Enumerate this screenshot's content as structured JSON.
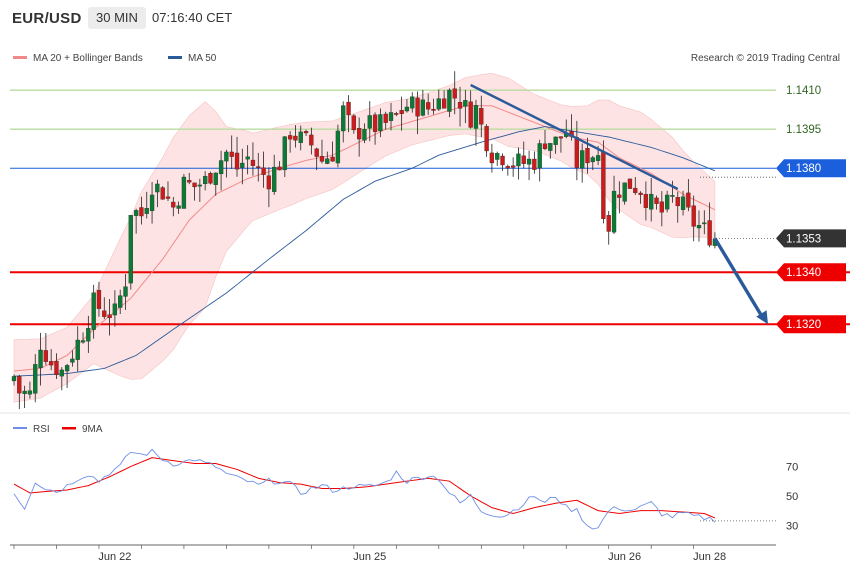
{
  "header": {
    "symbol": "EUR/USD",
    "timeframe": "30 MIN",
    "time": "07:16:40 CET"
  },
  "colors": {
    "bull_candle": "#0b7a34",
    "bear_candle": "#cc1b1b",
    "bb_fill": "#fde3e3",
    "bb_line": "#f28a8a",
    "ma20": "#f28a8a",
    "ma50": "#2b5a9a",
    "resistance": "#b9dca0",
    "support": "#ee0000",
    "pivot": "#1c5fdc",
    "last": "#333333",
    "rsi": "#6f8fe6",
    "rsi_ma": "#ee0000",
    "arrow": "#2b5a9a"
  },
  "icons": {
    "projection": "down-arrow-icon"
  },
  "chart_data": {
    "type": "candlestick",
    "legend": [
      {
        "name": "MA 20 + Bollinger Bands",
        "color": "#f28a8a"
      },
      {
        "name": "MA 50",
        "color": "#2b5a9a"
      }
    ],
    "credit": "Research © 2019 Trading Central",
    "price_range": [
      1.1287,
      1.1417
    ],
    "x_labels": [
      {
        "label": "Jun 22",
        "index": 19
      },
      {
        "label": "Jun 25",
        "index": 67
      },
      {
        "label": "Jun 26",
        "index": 115
      },
      {
        "label": "Jun 28",
        "index": 131
      }
    ],
    "candle_count": 133,
    "close_anchors": [
      [
        0,
        1.13
      ],
      [
        1,
        1.1294
      ],
      [
        3,
        1.1293
      ],
      [
        5,
        1.1313
      ],
      [
        7,
        1.1305
      ],
      [
        9,
        1.1302
      ],
      [
        11,
        1.1309
      ],
      [
        13,
        1.1317
      ],
      [
        15,
        1.1328
      ],
      [
        17,
        1.1325
      ],
      [
        19,
        1.1324
      ],
      [
        21,
        1.1337
      ],
      [
        22,
        1.1364
      ],
      [
        24,
        1.1362
      ],
      [
        26,
        1.1374
      ],
      [
        28,
        1.1371
      ],
      [
        30,
        1.1365
      ],
      [
        32,
        1.1374
      ],
      [
        34,
        1.1373
      ],
      [
        36,
        1.1375
      ],
      [
        38,
        1.1381
      ],
      [
        40,
        1.1386
      ],
      [
        42,
        1.138
      ],
      [
        44,
        1.1384
      ],
      [
        46,
        1.1379
      ],
      [
        48,
        1.1376
      ],
      [
        50,
        1.1382
      ],
      [
        52,
        1.1394
      ],
      [
        54,
        1.1391
      ],
      [
        56,
        1.1389
      ],
      [
        58,
        1.1383
      ],
      [
        60,
        1.1386
      ],
      [
        62,
        1.1402
      ],
      [
        64,
        1.1392
      ],
      [
        66,
        1.1397
      ],
      [
        68,
        1.1396
      ],
      [
        70,
        1.1397
      ],
      [
        72,
        1.14
      ],
      [
        74,
        1.1404
      ],
      [
        76,
        1.1404
      ],
      [
        78,
        1.1403
      ],
      [
        80,
        1.1406
      ],
      [
        82,
        1.1409
      ],
      [
        84,
        1.1406
      ],
      [
        86,
        1.14
      ],
      [
        87,
        1.1403
      ],
      [
        88,
        1.1396
      ],
      [
        90,
        1.1386
      ],
      [
        92,
        1.1385
      ],
      [
        94,
        1.1382
      ],
      [
        96,
        1.1382
      ],
      [
        98,
        1.1383
      ],
      [
        100,
        1.1391
      ],
      [
        102,
        1.139
      ],
      [
        104,
        1.1394
      ],
      [
        106,
        1.1382
      ],
      [
        108,
        1.1385
      ],
      [
        110,
        1.1386
      ],
      [
        111,
        1.1365
      ],
      [
        112,
        1.1358
      ],
      [
        113,
        1.137
      ],
      [
        114,
        1.1372
      ],
      [
        116,
        1.1374
      ],
      [
        118,
        1.1372
      ],
      [
        120,
        1.1366
      ],
      [
        122,
        1.1363
      ],
      [
        124,
        1.1368
      ],
      [
        126,
        1.1365
      ],
      [
        128,
        1.1359
      ],
      [
        130,
        1.1356
      ],
      [
        132,
        1.1353
      ]
    ],
    "ma50_curve": [
      [
        0,
        1.13
      ],
      [
        10,
        1.1301
      ],
      [
        17,
        1.1303
      ],
      [
        23,
        1.1308
      ],
      [
        30,
        1.1318
      ],
      [
        40,
        1.1332
      ],
      [
        48,
        1.1345
      ],
      [
        55,
        1.1356
      ],
      [
        62,
        1.1368
      ],
      [
        68,
        1.1375
      ],
      [
        75,
        1.138
      ],
      [
        80,
        1.1385
      ],
      [
        88,
        1.139
      ],
      [
        95,
        1.1394
      ],
      [
        100,
        1.1396
      ],
      [
        106,
        1.1394
      ],
      [
        112,
        1.1392
      ],
      [
        120,
        1.1388
      ],
      [
        126,
        1.1384
      ],
      [
        132,
        1.1379
      ]
    ],
    "ma20_curve": [
      [
        0,
        1.1302
      ],
      [
        5,
        1.1303
      ],
      [
        10,
        1.1308
      ],
      [
        15,
        1.1318
      ],
      [
        22,
        1.133
      ],
      [
        28,
        1.1345
      ],
      [
        33,
        1.136
      ],
      [
        38,
        1.137
      ],
      [
        44,
        1.1376
      ],
      [
        50,
        1.138
      ],
      [
        55,
        1.1383
      ],
      [
        60,
        1.1385
      ],
      [
        65,
        1.139
      ],
      [
        70,
        1.1395
      ],
      [
        75,
        1.1398
      ],
      [
        80,
        1.1401
      ],
      [
        85,
        1.1404
      ],
      [
        90,
        1.1404
      ],
      [
        95,
        1.14
      ],
      [
        100,
        1.1396
      ],
      [
        105,
        1.1392
      ],
      [
        110,
        1.139
      ],
      [
        114,
        1.1384
      ],
      [
        120,
        1.1378
      ],
      [
        126,
        1.137
      ],
      [
        132,
        1.1364
      ]
    ],
    "bb_width_curve": [
      [
        0,
        1.0
      ],
      [
        10,
        0.9
      ],
      [
        15,
        1.1
      ],
      [
        20,
        2.2
      ],
      [
        24,
        3.0
      ],
      [
        30,
        3.4
      ],
      [
        36,
        3.3
      ],
      [
        40,
        2.0
      ],
      [
        45,
        1.4
      ],
      [
        52,
        1.3
      ],
      [
        60,
        1.1
      ],
      [
        68,
        0.9
      ],
      [
        75,
        0.75
      ],
      [
        82,
        0.8
      ],
      [
        88,
        1.0
      ],
      [
        93,
        1.1
      ],
      [
        98,
        0.9
      ],
      [
        103,
        0.9
      ],
      [
        108,
        1.1
      ],
      [
        112,
        1.6
      ],
      [
        118,
        1.8
      ],
      [
        124,
        1.6
      ],
      [
        128,
        1.2
      ],
      [
        132,
        0.9
      ]
    ],
    "levels": [
      {
        "price": 1.141,
        "label": "1.1410",
        "kind": "resistance"
      },
      {
        "price": 1.1395,
        "label": "1.1395",
        "kind": "resistance"
      },
      {
        "price": 1.138,
        "label": "1.1380",
        "kind": "pivot"
      },
      {
        "price": 1.1353,
        "label": "1.1353",
        "kind": "last"
      },
      {
        "price": 1.134,
        "label": "1.1340",
        "kind": "support"
      },
      {
        "price": 1.132,
        "label": "1.1320",
        "kind": "support"
      }
    ],
    "trendline": {
      "from": [
        86,
        1.1412
      ],
      "to": [
        125,
        1.1372
      ]
    },
    "projection_arrow": {
      "from": [
        132,
        1.1353
      ],
      "to": [
        142,
        1.132
      ]
    },
    "rsi": {
      "legend": [
        {
          "name": "RSI",
          "color": "#6f8fe6"
        },
        {
          "name": "9MA",
          "color": "#ee0000"
        }
      ],
      "y_range": [
        20,
        88
      ],
      "ticks": [
        70,
        50,
        30
      ],
      "rsi_curve": [
        [
          0,
          52
        ],
        [
          2,
          42
        ],
        [
          4,
          60
        ],
        [
          6,
          55
        ],
        [
          8,
          53
        ],
        [
          10,
          57
        ],
        [
          12,
          62
        ],
        [
          14,
          65
        ],
        [
          16,
          60
        ],
        [
          18,
          66
        ],
        [
          20,
          70
        ],
        [
          22,
          80
        ],
        [
          24,
          78
        ],
        [
          26,
          80
        ],
        [
          28,
          75
        ],
        [
          30,
          72
        ],
        [
          32,
          73
        ],
        [
          34,
          75
        ],
        [
          36,
          72
        ],
        [
          38,
          70
        ],
        [
          40,
          65
        ],
        [
          42,
          62
        ],
        [
          44,
          60
        ],
        [
          46,
          57
        ],
        [
          48,
          60
        ],
        [
          50,
          60
        ],
        [
          52,
          58
        ],
        [
          54,
          52
        ],
        [
          56,
          55
        ],
        [
          58,
          57
        ],
        [
          60,
          54
        ],
        [
          62,
          55
        ],
        [
          64,
          57
        ],
        [
          66,
          56
        ],
        [
          68,
          57
        ],
        [
          70,
          59
        ],
        [
          72,
          66
        ],
        [
          74,
          60
        ],
        [
          76,
          62
        ],
        [
          78,
          64
        ],
        [
          80,
          62
        ],
        [
          82,
          52
        ],
        [
          84,
          45
        ],
        [
          86,
          50
        ],
        [
          88,
          40
        ],
        [
          90,
          38
        ],
        [
          92,
          36
        ],
        [
          94,
          40
        ],
        [
          96,
          45
        ],
        [
          98,
          50
        ],
        [
          100,
          45
        ],
        [
          102,
          50
        ],
        [
          104,
          42
        ],
        [
          106,
          40
        ],
        [
          108,
          30
        ],
        [
          110,
          28
        ],
        [
          112,
          40
        ],
        [
          114,
          42
        ],
        [
          116,
          40
        ],
        [
          118,
          42
        ],
        [
          120,
          45
        ],
        [
          122,
          38
        ],
        [
          124,
          36
        ],
        [
          126,
          38
        ],
        [
          128,
          36
        ],
        [
          130,
          35
        ],
        [
          132,
          34
        ]
      ],
      "ma_curve": [
        [
          0,
          58
        ],
        [
          3,
          52
        ],
        [
          6,
          53
        ],
        [
          10,
          54
        ],
        [
          14,
          57
        ],
        [
          18,
          63
        ],
        [
          22,
          70
        ],
        [
          26,
          76
        ],
        [
          30,
          74
        ],
        [
          34,
          72
        ],
        [
          38,
          72
        ],
        [
          42,
          68
        ],
        [
          46,
          62
        ],
        [
          50,
          59
        ],
        [
          54,
          58
        ],
        [
          58,
          55
        ],
        [
          62,
          55
        ],
        [
          66,
          56
        ],
        [
          70,
          58
        ],
        [
          74,
          60
        ],
        [
          78,
          62
        ],
        [
          82,
          60
        ],
        [
          86,
          50
        ],
        [
          90,
          42
        ],
        [
          94,
          38
        ],
        [
          98,
          42
        ],
        [
          102,
          45
        ],
        [
          106,
          47
        ],
        [
          110,
          40
        ],
        [
          114,
          38
        ],
        [
          118,
          40
        ],
        [
          122,
          40
        ],
        [
          126,
          39
        ],
        [
          130,
          38
        ],
        [
          132,
          35
        ]
      ]
    }
  }
}
